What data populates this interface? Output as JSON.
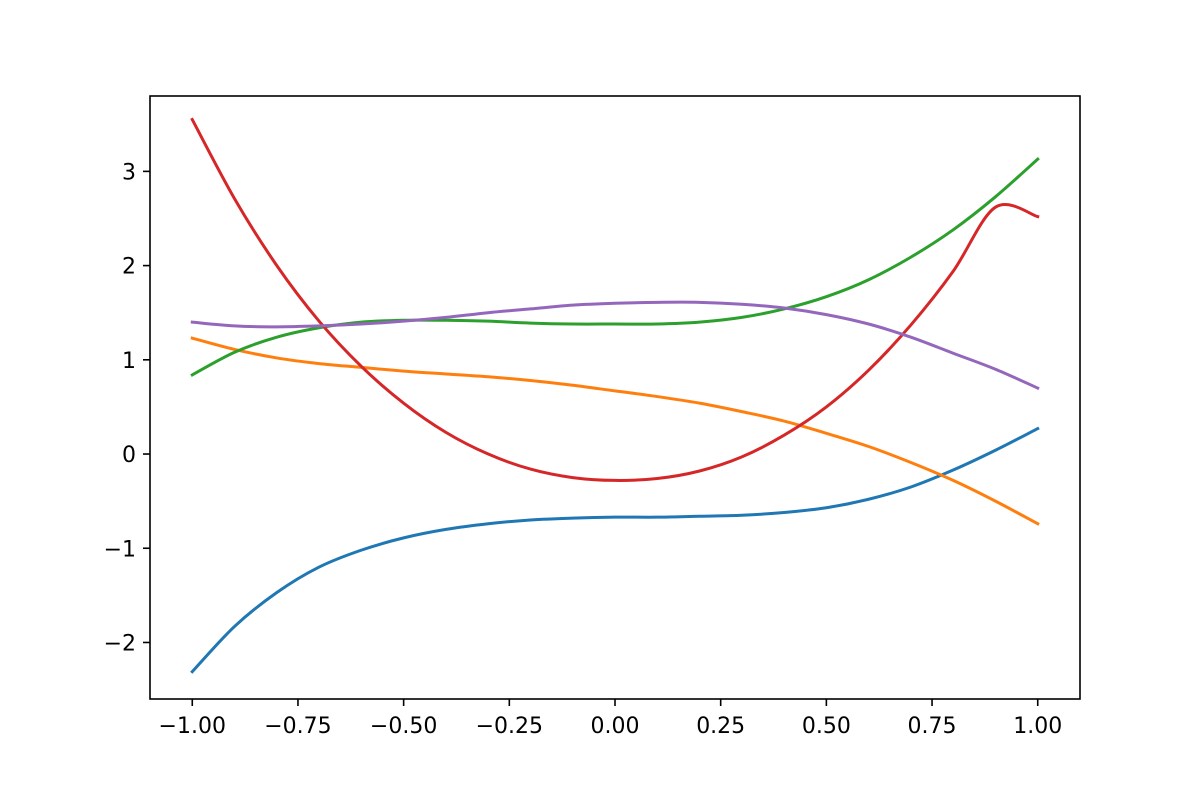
{
  "chart_data": {
    "type": "line",
    "title": "",
    "xlabel": "",
    "ylabel": "",
    "xlim": [
      -1.1,
      1.1
    ],
    "ylim": [
      -2.6,
      3.8
    ],
    "grid": false,
    "legend": "none",
    "x_ticks": [
      {
        "value": -1.0,
        "label": "−1.00"
      },
      {
        "value": -0.75,
        "label": "−0.75"
      },
      {
        "value": -0.5,
        "label": "−0.50"
      },
      {
        "value": -0.25,
        "label": "−0.25"
      },
      {
        "value": 0.0,
        "label": "0.00"
      },
      {
        "value": 0.25,
        "label": "0.25"
      },
      {
        "value": 0.5,
        "label": "0.50"
      },
      {
        "value": 0.75,
        "label": "0.75"
      },
      {
        "value": 1.0,
        "label": "1.00"
      }
    ],
    "y_ticks": [
      {
        "value": -2,
        "label": "−2"
      },
      {
        "value": -1,
        "label": "−1"
      },
      {
        "value": 0,
        "label": "0"
      },
      {
        "value": 1,
        "label": "1"
      },
      {
        "value": 2,
        "label": "2"
      },
      {
        "value": 3,
        "label": "3"
      }
    ],
    "x": [
      -1.0,
      -0.9,
      -0.8,
      -0.7,
      -0.6,
      -0.5,
      -0.4,
      -0.3,
      -0.2,
      -0.1,
      0.0,
      0.1,
      0.2,
      0.3,
      0.4,
      0.5,
      0.6,
      0.7,
      0.8,
      0.9,
      1.0
    ],
    "series": [
      {
        "color": "#1f77b4",
        "values": [
          -2.31,
          -1.83,
          -1.47,
          -1.2,
          -1.02,
          -0.89,
          -0.8,
          -0.74,
          -0.7,
          -0.68,
          -0.67,
          -0.67,
          -0.66,
          -0.65,
          -0.62,
          -0.57,
          -0.48,
          -0.35,
          -0.17,
          0.04,
          0.27
        ]
      },
      {
        "color": "#ff7f0e",
        "values": [
          1.23,
          1.11,
          1.02,
          0.96,
          0.92,
          0.88,
          0.85,
          0.82,
          0.78,
          0.73,
          0.67,
          0.61,
          0.54,
          0.45,
          0.35,
          0.22,
          0.08,
          -0.09,
          -0.28,
          -0.5,
          -0.74
        ]
      },
      {
        "color": "#2ca02c",
        "values": [
          0.84,
          1.08,
          1.24,
          1.34,
          1.4,
          1.42,
          1.42,
          1.41,
          1.39,
          1.38,
          1.38,
          1.38,
          1.4,
          1.45,
          1.54,
          1.67,
          1.85,
          2.09,
          2.38,
          2.73,
          3.13
        ]
      },
      {
        "color": "#d62728",
        "values": [
          3.55,
          2.71,
          2.0,
          1.41,
          0.93,
          0.54,
          0.23,
          0.0,
          -0.16,
          -0.25,
          -0.28,
          -0.26,
          -0.18,
          -0.03,
          0.2,
          0.5,
          0.89,
          1.37,
          1.94,
          2.62,
          2.52
        ]
      },
      {
        "color": "#9467bd",
        "values": [
          1.4,
          1.36,
          1.35,
          1.36,
          1.38,
          1.41,
          1.45,
          1.5,
          1.54,
          1.58,
          1.6,
          1.61,
          1.61,
          1.59,
          1.55,
          1.48,
          1.38,
          1.24,
          1.07,
          0.9,
          0.7
        ]
      }
    ]
  }
}
